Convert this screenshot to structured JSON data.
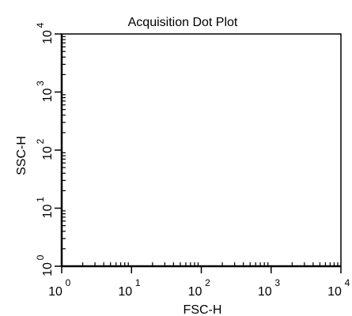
{
  "chart_data": {
    "type": "scatter",
    "title": "Acquisition Dot Plot",
    "xlabel": "FSC-H",
    "ylabel": "SSC-H",
    "x_scale": "log",
    "y_scale": "log",
    "xlim": [
      1,
      10000
    ],
    "ylim": [
      1,
      10000
    ],
    "x_ticks": [
      {
        "base": "10",
        "exp": "0"
      },
      {
        "base": "10",
        "exp": "1"
      },
      {
        "base": "10",
        "exp": "2"
      },
      {
        "base": "10",
        "exp": "3"
      },
      {
        "base": "10",
        "exp": "4"
      }
    ],
    "y_ticks": [
      {
        "base": "10",
        "exp": "0"
      },
      {
        "base": "10",
        "exp": "1"
      },
      {
        "base": "10",
        "exp": "2"
      },
      {
        "base": "10",
        "exp": "3"
      },
      {
        "base": "10",
        "exp": "4"
      }
    ],
    "points": [],
    "grid": false,
    "legend": "none"
  }
}
